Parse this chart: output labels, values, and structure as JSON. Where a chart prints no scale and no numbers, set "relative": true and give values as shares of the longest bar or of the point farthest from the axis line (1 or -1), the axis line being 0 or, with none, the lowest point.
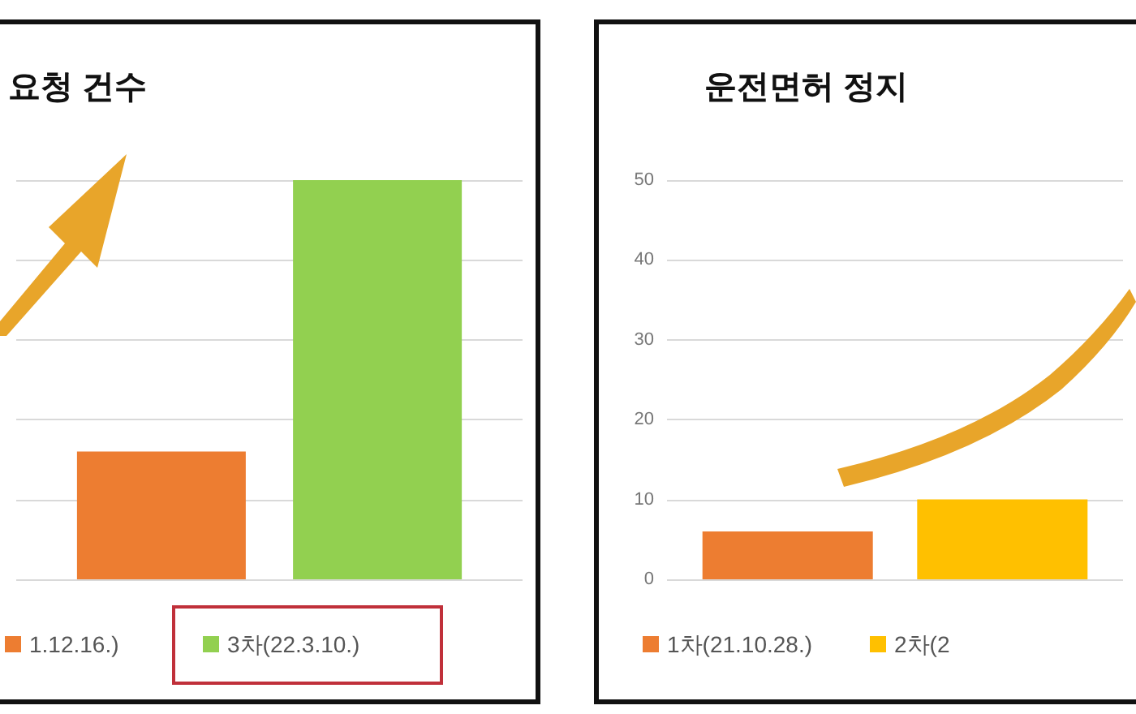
{
  "chart_data": [
    {
      "type": "bar",
      "title": "요청 건수",
      "categories": [
        null
      ],
      "relative": true,
      "grid": "y",
      "legend": "bottom",
      "series": [
        {
          "name": "1.12.16.)",
          "color": "#ed7d31",
          "values": [
            0.32
          ]
        },
        {
          "name": "3차(22.3.10.)",
          "color": "#92d050",
          "values": [
            1
          ]
        }
      ]
    },
    {
      "type": "bar",
      "title": "운전면허 정지",
      "categories": [
        null
      ],
      "ylim": [
        0,
        50
      ],
      "yticks": [
        0,
        10,
        20,
        30,
        40,
        50
      ],
      "grid": "y",
      "legend": "bottom",
      "series": [
        {
          "name": "1차(21.10.28.)",
          "color": "#ed7d31",
          "values": [
            6
          ]
        },
        {
          "name": "2차(2",
          "color": "#ffc000",
          "values": [
            10
          ]
        }
      ]
    }
  ]
}
